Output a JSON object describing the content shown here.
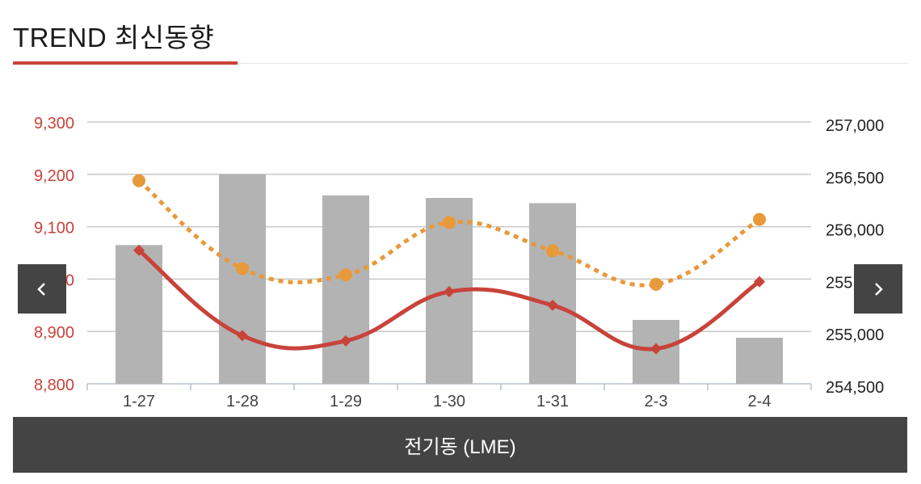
{
  "header": {
    "title": "TREND 최신동향"
  },
  "footer": {
    "label": "전기동 (LME)"
  },
  "nav": {
    "prev_icon": "chevron-left-icon",
    "next_icon": "chevron-right-icon"
  },
  "colors": {
    "bar": "#b3b3b3",
    "line_solid": "#c8433a",
    "line_dotted": "#e8993a",
    "left_axis_text": "#c8433a",
    "right_axis_text": "#222222",
    "grid": "#c8c8c8"
  },
  "chart_data": {
    "type": "bar",
    "categories": [
      "1-27",
      "1-28",
      "1-29",
      "1-30",
      "1-31",
      "2-3",
      "2-4"
    ],
    "left_axis": {
      "ticks": [
        "9,300",
        "9,200",
        "9,100",
        "9,000",
        "8,900",
        "8,800"
      ],
      "min": 8800,
      "max": 9300
    },
    "right_axis": {
      "ticks": [
        "257,000",
        "256,500",
        "256,000",
        "255,500",
        "255,000",
        "254,500"
      ],
      "min": 254500,
      "max": 257000
    },
    "grid": true,
    "series": [
      {
        "type": "bar",
        "axis": "left",
        "values": [
          9065,
          9200,
          9160,
          9155,
          9145,
          8922,
          8888
        ]
      },
      {
        "type": "line",
        "style": "solid",
        "marker": "diamond",
        "axis": "left",
        "values": [
          9055,
          8892,
          8882,
          8976,
          8950,
          8867,
          8995
        ]
      },
      {
        "type": "line",
        "style": "dotted",
        "marker": "circle",
        "axis": "right",
        "values": [
          256440,
          255600,
          255540,
          256040,
          255770,
          255450,
          256070
        ]
      }
    ]
  }
}
